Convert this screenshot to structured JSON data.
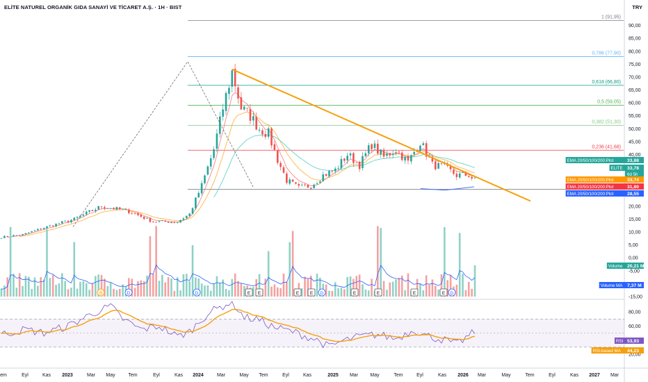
{
  "title": "ELİTE NATUREL ORGANİK GIDA SANAYİ VE TİCARET A.Ş. · 1H · BIST",
  "currency": "TRY",
  "colors": {
    "up": "#26a69a",
    "down": "#ef5350",
    "trend": "#f5a00c",
    "ema20": "#f7525f",
    "ema50": "#ff9800",
    "ema100": "#4dd0c0",
    "ema200": "#2962ff",
    "volMA": "#2962ff",
    "rsi": "#7e57c2",
    "rsiMA": "#f5a00c",
    "fib1": "#787b86",
    "fib786": "#64b5f6",
    "fib618": "#089981",
    "fib5": "#4caf50",
    "fib382": "#81c784",
    "fib236": "#f23645"
  },
  "chart_data": [
    {
      "type": "candlestick",
      "name": "ELITE price",
      "x_axis": {
        "ticks": [
          "tem",
          "Eyl",
          "Kas",
          "2023",
          "Mar",
          "May",
          "Tem",
          "Eyl",
          "Kas",
          "2024",
          "Mar",
          "May",
          "Tem",
          "Eyl",
          "Kas",
          "2025",
          "Mar",
          "May",
          "Tem",
          "Eyl",
          "Kas",
          "2026",
          "Mar",
          "May",
          "Tem",
          "Eyl",
          "Kas",
          "2027",
          "Mar"
        ]
      },
      "y_axis": {
        "min": -15,
        "max": 95,
        "ticks": [
          "90,00",
          "85,00",
          "80,00",
          "75,00",
          "70,00",
          "65,00",
          "60,00",
          "55,00",
          "50,00",
          "45,00",
          "40,00",
          "35,00",
          "30,00",
          "25,00",
          "20,00",
          "15,00",
          "10,00",
          "5,00",
          "0,00",
          "-5,00",
          "-10,00",
          "-15,00"
        ]
      },
      "price_path": [
        [
          0,
          8
        ],
        [
          7,
          9
        ],
        [
          15,
          12
        ],
        [
          24,
          15
        ],
        [
          33,
          20
        ],
        [
          42,
          18
        ],
        [
          50,
          14
        ],
        [
          58,
          14
        ],
        [
          62,
          17
        ],
        [
          66,
          28
        ],
        [
          70,
          42
        ],
        [
          73,
          58
        ],
        [
          76,
          72
        ],
        [
          79,
          58
        ],
        [
          82,
          55
        ],
        [
          85,
          50
        ],
        [
          88,
          48
        ],
        [
          91,
          38
        ],
        [
          94,
          30
        ],
        [
          98,
          27
        ],
        [
          102,
          28
        ],
        [
          106,
          32
        ],
        [
          110,
          34
        ],
        [
          114,
          40
        ],
        [
          118,
          36
        ],
        [
          122,
          44
        ],
        [
          126,
          39
        ],
        [
          130,
          42
        ],
        [
          134,
          37
        ],
        [
          138,
          45
        ],
        [
          142,
          36
        ],
        [
          146,
          35
        ],
        [
          150,
          32
        ],
        [
          154,
          32
        ],
        [
          156,
          30
        ]
      ],
      "fib_levels": [
        {
          "label": "1 (91,95)",
          "value": 91.95,
          "color": "fib1"
        },
        {
          "label": "0,786 (77,90)",
          "value": 77.9,
          "color": "fib786"
        },
        {
          "label": "0,618 (66,80)",
          "value": 66.8,
          "color": "fib618"
        },
        {
          "label": "0,5 (59,05)",
          "value": 59.05,
          "color": "fib5"
        },
        {
          "label": "0,382 (51,30)",
          "value": 51.3,
          "color": "fib382"
        },
        {
          "label": "0,236 (41,68)",
          "value": 41.68,
          "color": "fib236"
        }
      ],
      "support_level": 26.5,
      "trendline": {
        "from": [
          76,
          73
        ],
        "to": [
          156,
          25
        ]
      },
      "price_labels": [
        {
          "text": "EMA 20/50/100/200:Plot",
          "value": "33,88",
          "color": "#26a69a"
        },
        {
          "text": "ELITE",
          "value": "33,78",
          "extra": "6d 5h",
          "color": "#26a69a"
        },
        {
          "text": "EMA 20/50/100/200:Plot",
          "value": "33,74",
          "color": "#ff9800"
        },
        {
          "text": "EMA 20/50/100/200:Plot",
          "value": "31,80",
          "color": "#f23645"
        },
        {
          "text": "EMA 20/50/100/200:Plot",
          "value": "28,55",
          "color": "#2962ff"
        }
      ],
      "volume_labels": [
        {
          "text": "Volume",
          "value": "20,21 M",
          "color": "#26a69a"
        },
        {
          "text": "Volume MA",
          "value": "7,37 M",
          "color": "#2962ff"
        }
      ],
      "events": [
        "S",
        "D",
        "D",
        "E",
        "E",
        "E",
        "E",
        "D",
        "E",
        "E",
        "E",
        "E",
        "D"
      ]
    },
    {
      "type": "line",
      "name": "RSI",
      "y_axis": {
        "ticks": [
          "80,00",
          "60,00",
          "40,00",
          "20,00"
        ]
      },
      "bands": [
        70,
        30
      ],
      "rsi_labels": [
        {
          "text": "RSI",
          "value": "53,93",
          "color": "#7e57c2"
        },
        {
          "text": "RSI-based MA",
          "value": "44,23",
          "color": "#f5a00c"
        }
      ]
    }
  ]
}
